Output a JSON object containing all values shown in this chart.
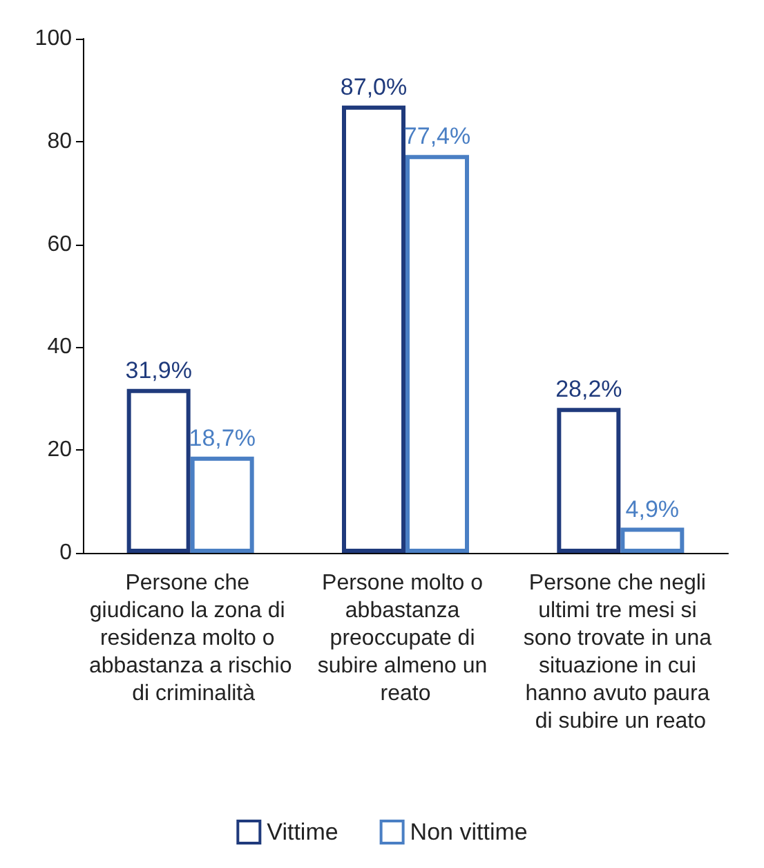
{
  "chart_data": {
    "type": "bar",
    "categories": [
      "Persone che giudicano la zona di residenza molto o abbastanza a rischio di criminalità",
      "Persone molto o abbastanza preoccupate di subire almeno un reato",
      "Persone che negli ultimi tre mesi si sono trovate in una situazione in cui hanno avuto paura di subire un reato"
    ],
    "series": [
      {
        "name": "Vittime",
        "color": "#1f3a7c",
        "values": [
          31.9,
          87.0,
          28.2
        ],
        "value_labels": [
          "31,9%",
          "87,0%",
          "28,2%"
        ]
      },
      {
        "name": "Non vittime",
        "color": "#4a7fc4",
        "values": [
          18.7,
          77.4,
          4.9
        ],
        "value_labels": [
          "18,7%",
          "77,4%",
          "4,9%"
        ]
      }
    ],
    "ylim": [
      0,
      100
    ],
    "yticks": [
      0,
      20,
      40,
      60,
      80,
      100
    ],
    "grid": false,
    "legend": "bottom"
  }
}
